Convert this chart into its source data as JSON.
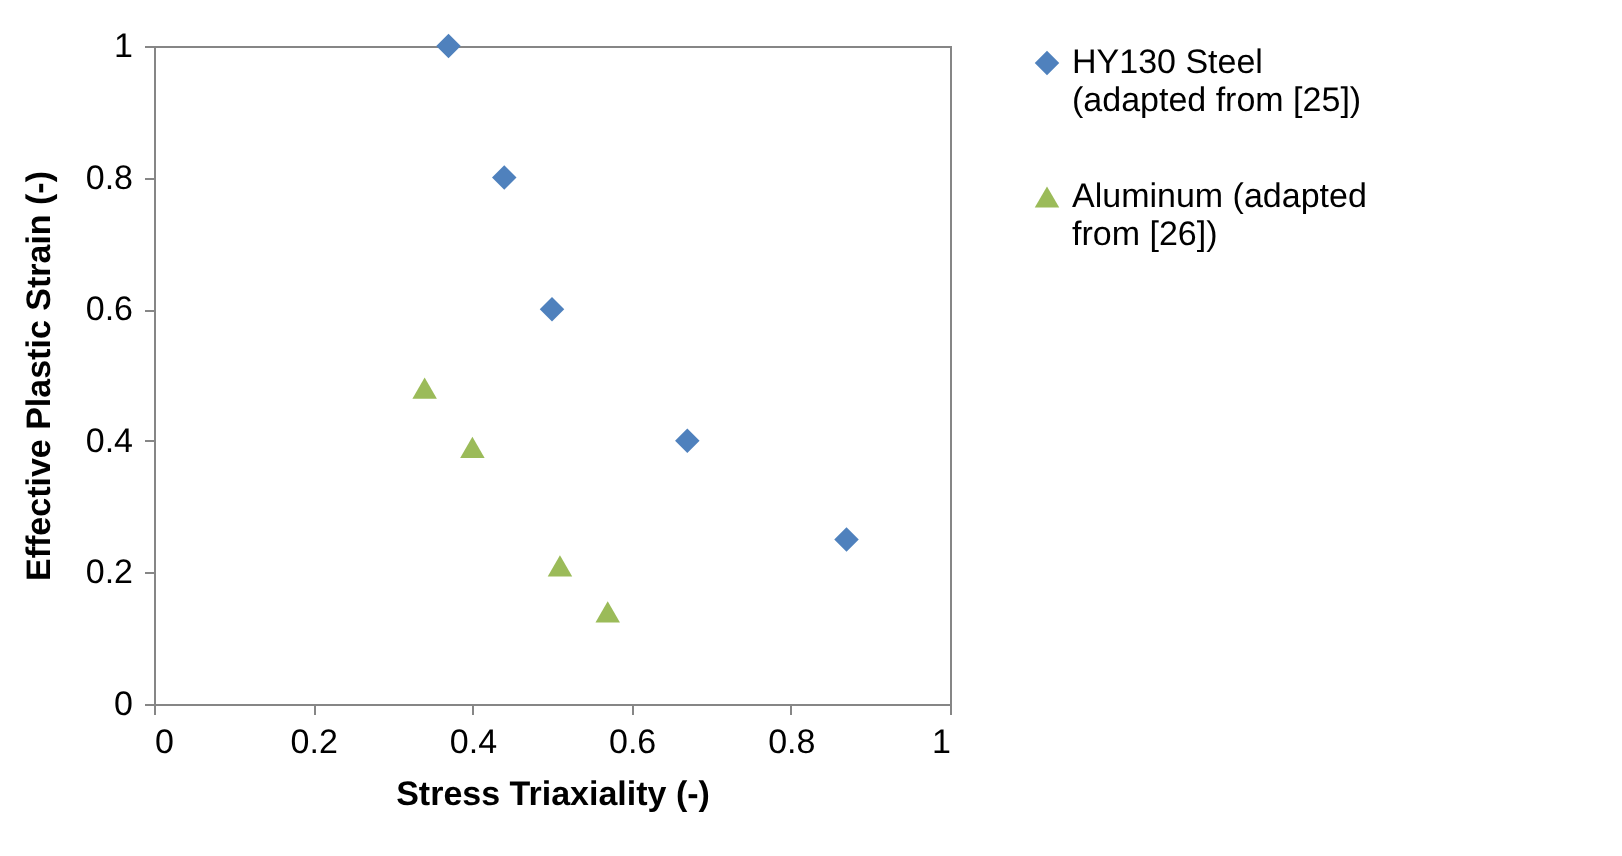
{
  "chart_data": {
    "type": "scatter",
    "xlabel": "Stress Triaxiality (-)",
    "ylabel": "Effective Plastic Strain (-)",
    "xlim": [
      0,
      1
    ],
    "ylim": [
      0,
      1
    ],
    "xticks": [
      0,
      0.2,
      0.4,
      0.6,
      0.8,
      1
    ],
    "yticks": [
      0,
      0.2,
      0.4,
      0.6,
      0.8,
      1
    ],
    "legend": "right",
    "grid": false,
    "series": [
      {
        "name": "HY130 Steel (adapted from [25])",
        "color": "#4f81bd",
        "marker": "diamond",
        "x": [
          0.37,
          0.44,
          0.5,
          0.67,
          0.87
        ],
        "values": [
          1.0,
          0.8,
          0.6,
          0.4,
          0.25
        ]
      },
      {
        "name": "Aluminum (adapted from [26])",
        "color": "#9bbb59",
        "marker": "triangle",
        "x": [
          0.34,
          0.4,
          0.51,
          0.57
        ],
        "values": [
          0.48,
          0.39,
          0.21,
          0.14
        ]
      }
    ]
  }
}
